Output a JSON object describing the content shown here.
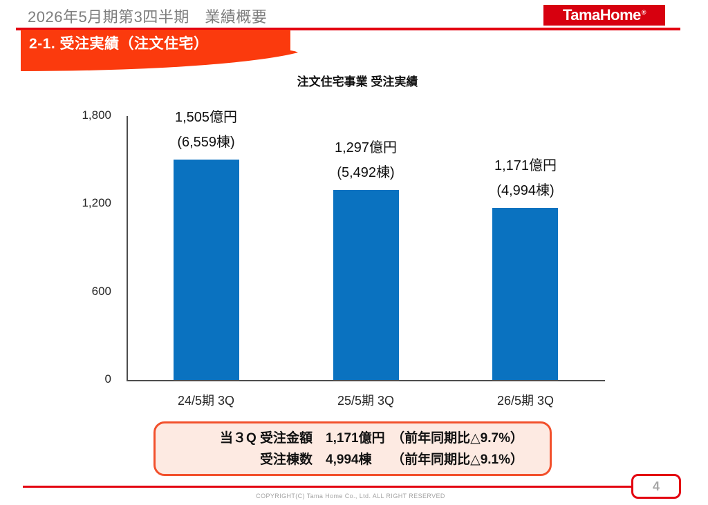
{
  "header": {
    "title": "2026年5月期第3四半期　業績概要",
    "logo_text": "TamaHome",
    "logo_reg_mark": "®",
    "section_title": "2-1. 受注実績（注文住宅）"
  },
  "chart_data": {
    "type": "bar",
    "title": "注文住宅事業 受注実績",
    "categories": [
      "24/5期 3Q",
      "25/5期 3Q",
      "26/5期 3Q"
    ],
    "values": [
      1505,
      1297,
      1171
    ],
    "bar_labels": [
      {
        "amount": "1,505億円",
        "units": "(6,559棟)"
      },
      {
        "amount": "1,297億円",
        "units": "(5,492棟)"
      },
      {
        "amount": "1,171億円",
        "units": "(4,994棟)"
      }
    ],
    "ylabel": "",
    "xlabel": "",
    "ylim": [
      0,
      1800
    ],
    "yticks": [
      0,
      600,
      1200,
      1800
    ],
    "ytick_labels": [
      "0",
      "600",
      "1,200",
      "1,800"
    ],
    "grid": false,
    "legend": "none",
    "bar_color": "#0a72c0"
  },
  "summary_box": {
    "line1": "当３Q 受注金額　1,171億円　（前年同期比△9.7%）",
    "line2": "受注棟数　4,994棟　　（前年同期比△9.1%）",
    "rows": [
      {
        "label": "当３Q 受注金額",
        "value": "1,171億円",
        "comparison": "（前年同期比△9.7%）"
      },
      {
        "label": "受注棟数",
        "value": "4,994棟",
        "comparison": "（前年同期比△9.1%）"
      }
    ]
  },
  "footer": {
    "copyright": "COPYRIGHT(C)  Tama Home Co., Ltd.   ALL RIGHT RESERVED",
    "page_number": "4"
  },
  "colors": {
    "banner": "#fb3a0d",
    "crimson_rule": "#e3000f",
    "logo_background": "#d7000f",
    "bar_blue": "#0a72c0",
    "summary_border": "#f2502c",
    "summary_background": "#fdeae2",
    "header_title_gray": "#7d7d7d",
    "page_number_gray": "#a6a6a6"
  }
}
